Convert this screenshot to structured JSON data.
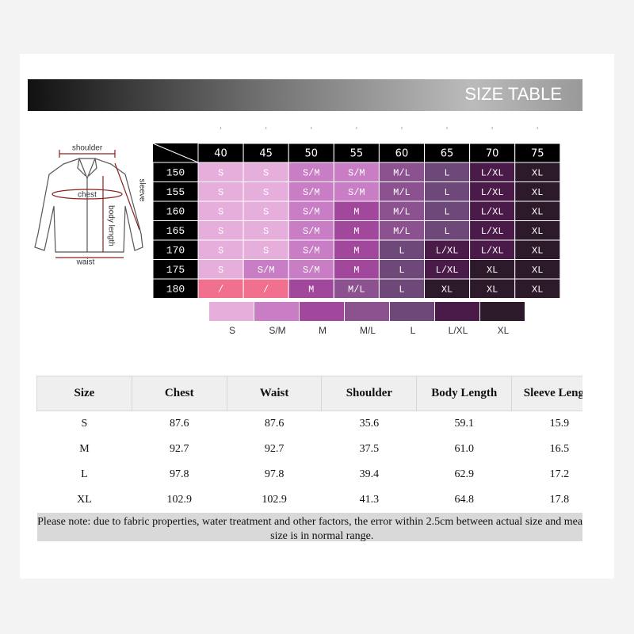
{
  "header": {
    "title": "SIZE TABLE"
  },
  "diagram": {
    "labels": [
      "shoulder",
      "chest",
      "sleeve",
      "body length",
      "waist"
    ]
  },
  "size_grid": {
    "columns": [
      40,
      45,
      50,
      55,
      60,
      65,
      70,
      75
    ],
    "rows": [
      {
        "label": 150,
        "cells": [
          "S",
          "S",
          "S/M",
          "S/M",
          "M/L",
          "L",
          "L/XL",
          "XL"
        ]
      },
      {
        "label": 155,
        "cells": [
          "S",
          "S",
          "S/M",
          "S/M",
          "M/L",
          "L",
          "L/XL",
          "XL"
        ]
      },
      {
        "label": 160,
        "cells": [
          "S",
          "S",
          "S/M",
          "M",
          "M/L",
          "L",
          "L/XL",
          "XL"
        ]
      },
      {
        "label": 165,
        "cells": [
          "S",
          "S",
          "S/M",
          "M",
          "M/L",
          "L",
          "L/XL",
          "XL"
        ]
      },
      {
        "label": 170,
        "cells": [
          "S",
          "S",
          "S/M",
          "M",
          "L",
          "L/XL",
          "L/XL",
          "XL"
        ]
      },
      {
        "label": 175,
        "cells": [
          "S",
          "S/M",
          "S/M",
          "M",
          "L",
          "L/XL",
          "XL",
          "XL"
        ]
      },
      {
        "label": 180,
        "cells": [
          "/",
          "/",
          "M",
          "M/L",
          "L",
          "XL",
          "XL",
          "XL"
        ]
      }
    ],
    "empty_color": "#f0708e"
  },
  "legend": [
    {
      "label": "S",
      "color": "#e6aedb"
    },
    {
      "label": "S/M",
      "color": "#c97dc4"
    },
    {
      "label": "M",
      "color": "#a1489c"
    },
    {
      "label": "M/L",
      "color": "#8c5290"
    },
    {
      "label": "L",
      "color": "#6e4878"
    },
    {
      "label": "L/XL",
      "color": "#4a1a48"
    },
    {
      "label": "XL",
      "color": "#2c1a2a"
    }
  ],
  "table": {
    "header": [
      "Size",
      "Chest",
      "Waist",
      "Shoulder",
      "Body Length",
      "Sleeve Length"
    ],
    "rows": [
      [
        "S",
        "87.6",
        "87.6",
        "35.6",
        "59.1",
        "15.9"
      ],
      [
        "M",
        "92.7",
        "92.7",
        "37.5",
        "61.0",
        "16.5"
      ],
      [
        "L",
        "97.8",
        "97.8",
        "39.4",
        "62.9",
        "17.2"
      ],
      [
        "XL",
        "102.9",
        "102.9",
        "41.3",
        "64.8",
        "17.8"
      ]
    ],
    "note": "Please note: due to fabric properties, water treatment and other factors, the error within 2.5cm between actual size and measured size is in normal range."
  }
}
